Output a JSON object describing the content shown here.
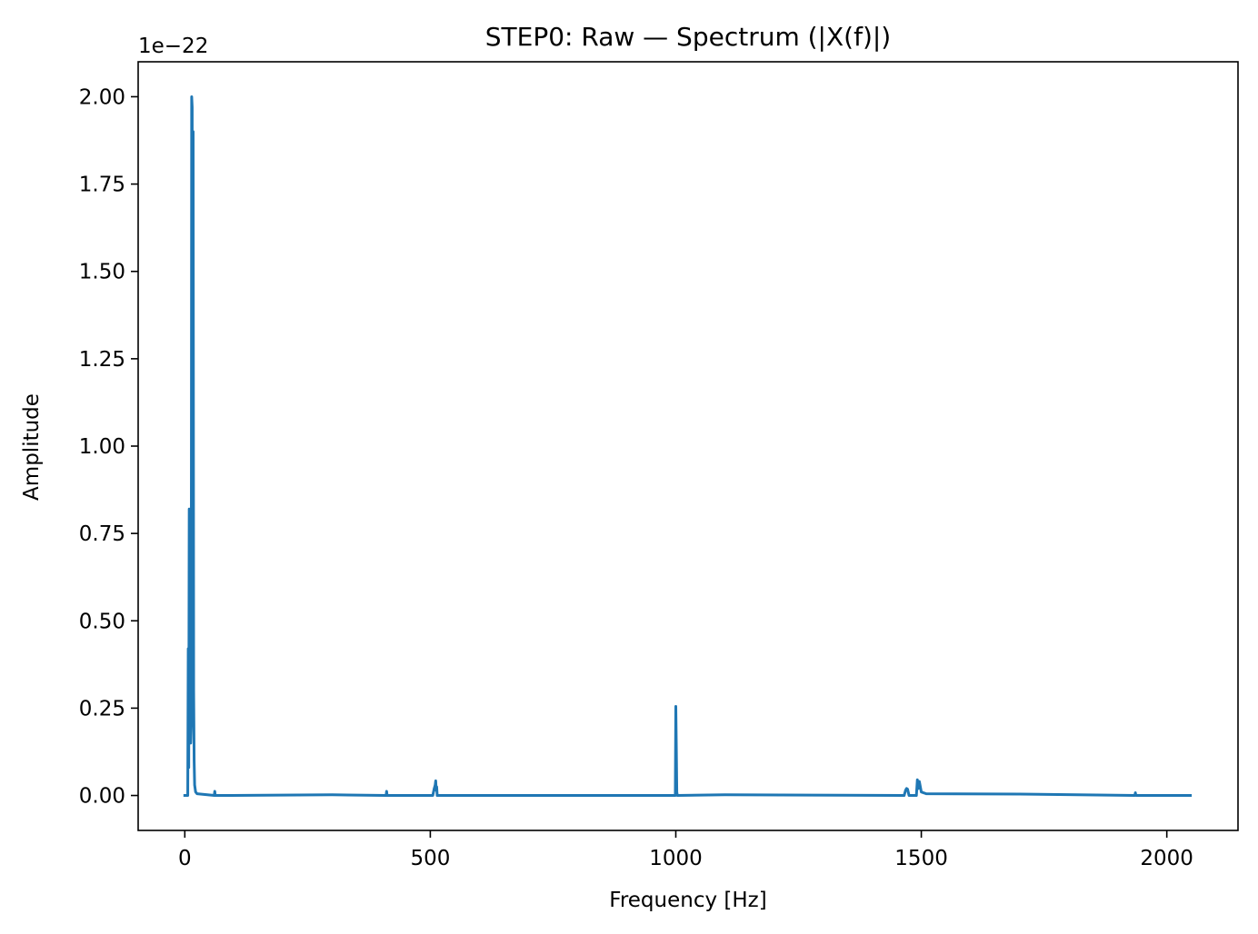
{
  "chart_data": {
    "type": "line",
    "title": "STEP0: Raw — Spectrum (|X(f)|)",
    "xlabel": "Frequency [Hz]",
    "ylabel": "Amplitude",
    "y_offset_label": "1e−22",
    "xlim": [
      -95,
      2145
    ],
    "ylim": [
      -0.1,
      2.1
    ],
    "x_ticks": [
      0,
      500,
      1000,
      1500,
      2000
    ],
    "x_tick_labels": [
      "0",
      "500",
      "1000",
      "1500",
      "2000"
    ],
    "y_ticks": [
      0.0,
      0.25,
      0.5,
      0.75,
      1.0,
      1.25,
      1.5,
      1.75,
      2.0
    ],
    "y_tick_labels": [
      "0.00",
      "0.25",
      "0.50",
      "0.75",
      "1.00",
      "1.25",
      "1.50",
      "1.75",
      "2.00"
    ],
    "grid": false,
    "line_color": "#1f77b4",
    "series": [
      {
        "name": "",
        "x": [
          0,
          6,
          7,
          8,
          9,
          10,
          11,
          12,
          13,
          14,
          15,
          16,
          17,
          18,
          19,
          20,
          21,
          22,
          25,
          60,
          61,
          62,
          300,
          410,
          411,
          412,
          505,
          508,
          510,
          511,
          512,
          513,
          514,
          520,
          999,
          1000,
          1001,
          1002,
          1003,
          1100,
          1465,
          1468,
          1470,
          1472,
          1475,
          1490,
          1492,
          1494,
          1496,
          1498,
          1500,
          1510,
          1700,
          1935,
          1936,
          1937,
          2048
        ],
        "y": [
          0,
          0,
          0.42,
          0.08,
          0.82,
          0.3,
          0.81,
          0.15,
          0.2,
          2.0,
          1.97,
          0.5,
          1.9,
          0.3,
          0.1,
          0.03,
          0.02,
          0.01,
          0.005,
          0,
          0.012,
          0,
          0.002,
          0,
          0.012,
          0,
          0,
          0.02,
          0.03,
          0.042,
          0.015,
          0.025,
          0,
          0,
          0,
          0.255,
          0.14,
          0.01,
          0,
          0.002,
          0,
          0.015,
          0.02,
          0.018,
          0,
          0,
          0.045,
          0.02,
          0.04,
          0.025,
          0.01,
          0.005,
          0.004,
          0,
          0.008,
          0,
          0
        ]
      }
    ]
  }
}
